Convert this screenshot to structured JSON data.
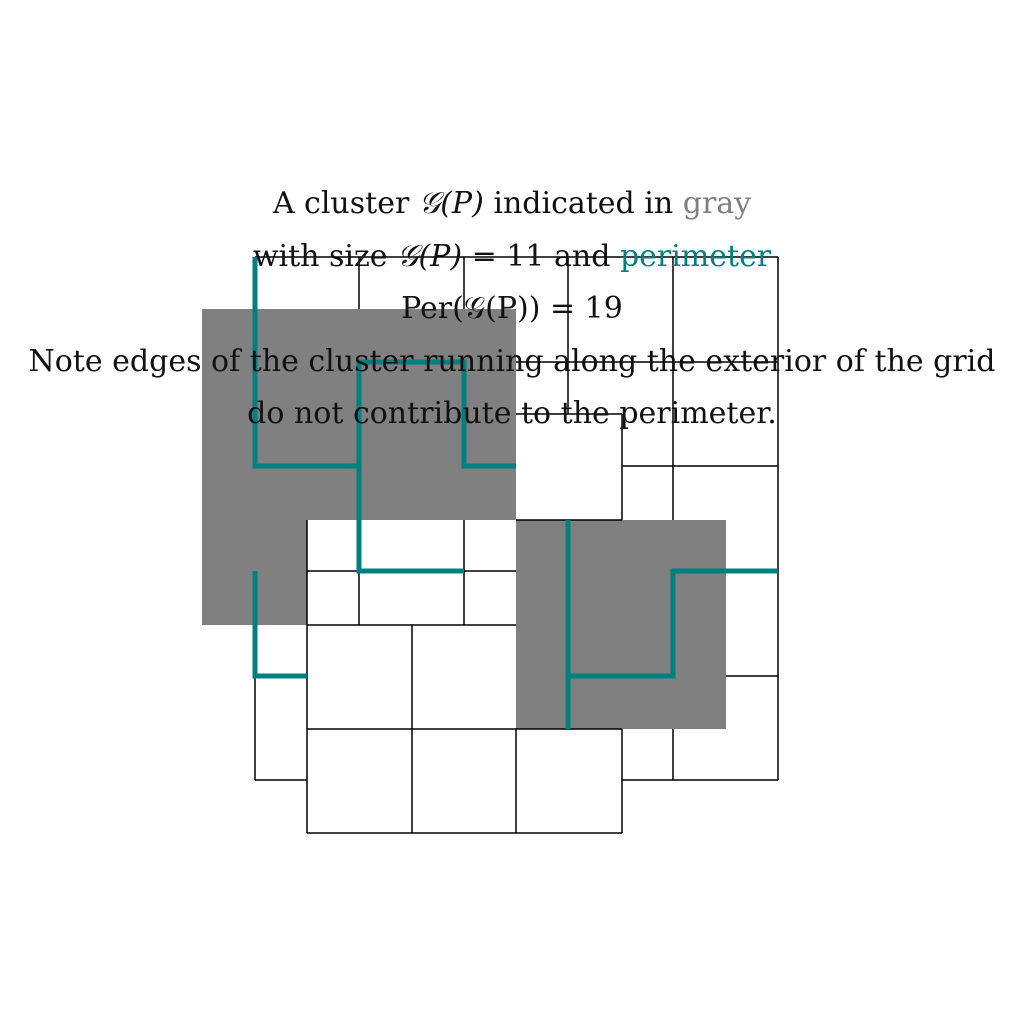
{
  "colors": {
    "cluster_fill": "#808080",
    "perimeter": "#008080",
    "grid_line": "#000000",
    "text": "#111111",
    "gray_word": "#808080",
    "perimeter_word": "#008080"
  },
  "caption": {
    "line1_prefix": "A cluster ",
    "line1_symbol": "𝒢(P)",
    "line1_mid": " indicated in ",
    "line1_gray_word": "gray",
    "line2_prefix": "with size ",
    "line2_symbol": "𝒢(P)",
    "line2_eq": " = 11 and ",
    "line2_perimeter_word": "perimeter",
    "line3_text": "Per(𝒢(P)) = 19",
    "line4_text": "Note edges of the cluster running along the exterior of the grid",
    "line5_text": "do not contribute to the perimeter."
  }
}
